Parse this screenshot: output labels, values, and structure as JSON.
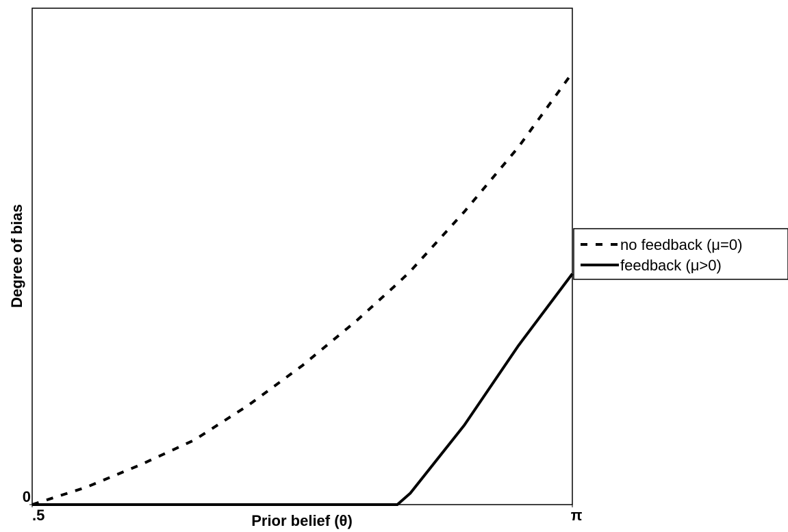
{
  "chart_data": {
    "type": "line",
    "x_label": "Prior belief (θ)",
    "y_label": "Degree of bias",
    "x": [
      0.5,
      0.55,
      0.6,
      0.65,
      0.7,
      0.75,
      0.8,
      0.838,
      0.85,
      0.9,
      0.95,
      1.0
    ],
    "series": [
      {
        "name": "no feedback (μ=0)",
        "color": "#000000",
        "dash": true,
        "values": [
          0,
          3.5,
          8,
          13,
          20,
          28,
          37,
          44.5,
          47,
          59,
          72,
          87
        ]
      },
      {
        "name": "feedback (μ>0)",
        "color": "#000000",
        "dash": false,
        "values": [
          0,
          0,
          0,
          0,
          0,
          0,
          0,
          0,
          2.3,
          16,
          32,
          46.5
        ]
      }
    ],
    "xlim": [
      0.5,
      1.0
    ],
    "ylim": [
      0,
      100
    ],
    "xticks": [
      {
        "value": 0.5,
        "label": ".5"
      },
      {
        "value": 1.0,
        "label": "π"
      }
    ],
    "yticks": [
      0
    ],
    "legend": "right"
  }
}
